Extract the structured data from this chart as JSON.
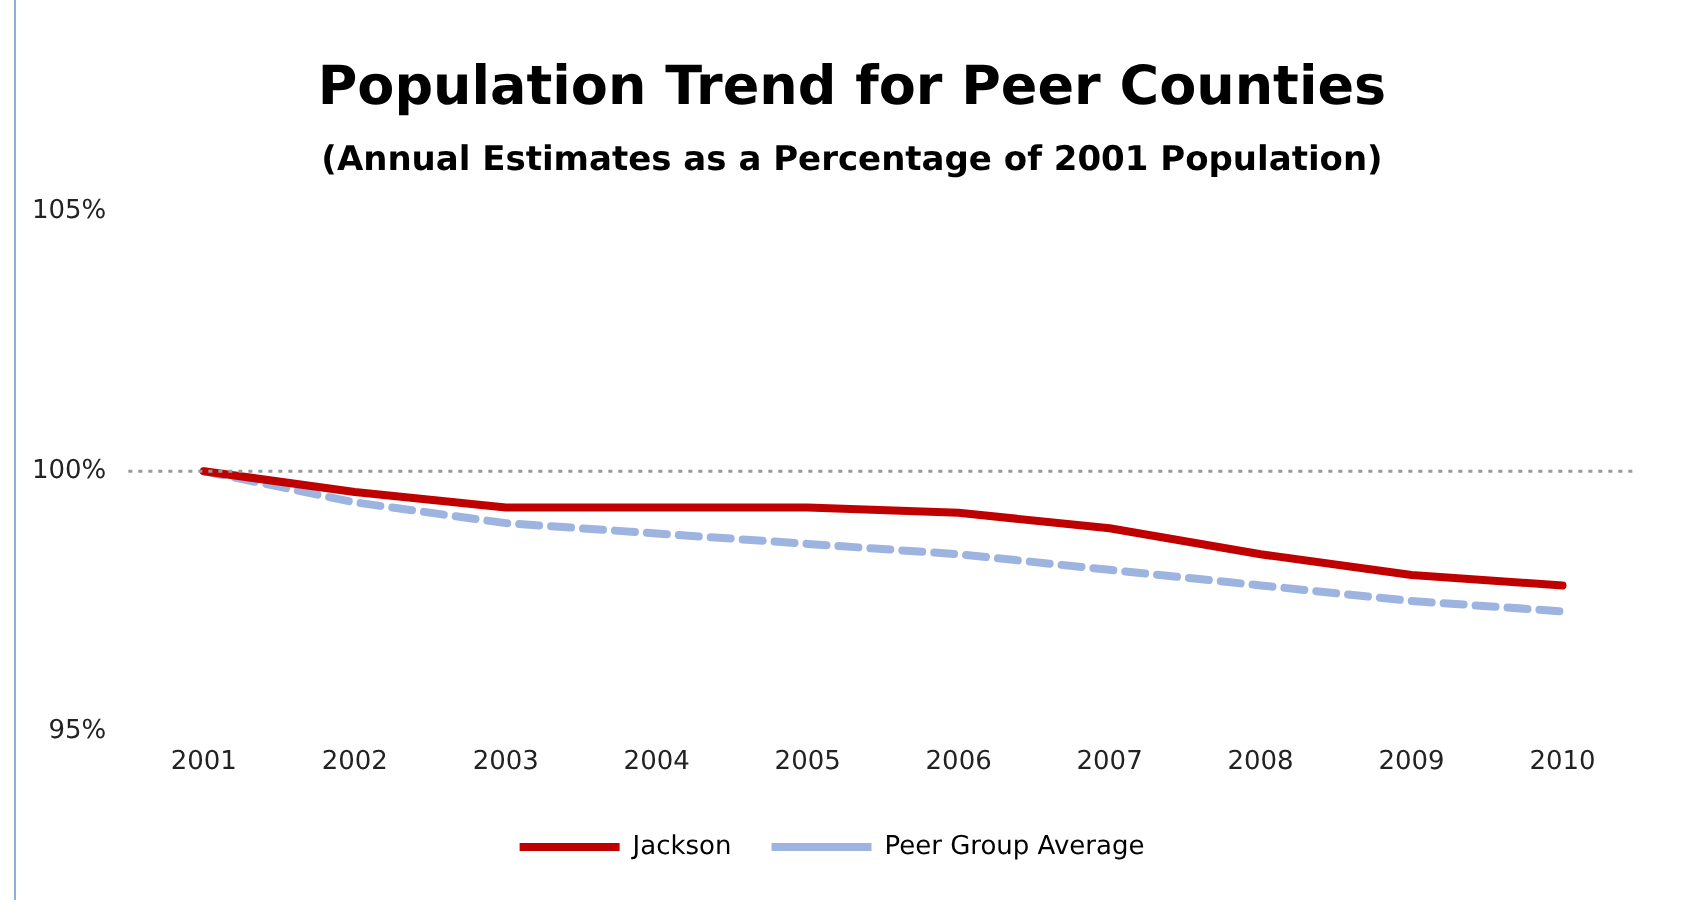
{
  "chart_data": {
    "type": "line",
    "title": "Population Trend for Peer Counties",
    "subtitle": "(Annual Estimates as a Percentage of 2001 Population)",
    "categories": [
      "2001",
      "2002",
      "2003",
      "2004",
      "2005",
      "2006",
      "2007",
      "2008",
      "2009",
      "2010"
    ],
    "series": [
      {
        "name": "Jackson",
        "color": "#c00000",
        "line_style": "solid",
        "values": [
          100,
          99.6,
          99.3,
          99.3,
          99.3,
          99.2,
          98.9,
          98.4,
          98.0,
          97.8
        ]
      },
      {
        "name": "Peer Group Average",
        "color": "#9db3e0",
        "line_style": "dashed",
        "values": [
          100,
          99.4,
          99.0,
          98.8,
          98.6,
          98.4,
          98.1,
          97.8,
          97.5,
          97.3
        ]
      }
    ],
    "ylim": [
      95,
      105
    ],
    "yticks": [
      {
        "value": 95,
        "label": "95%"
      },
      {
        "value": 100,
        "label": "100%"
      },
      {
        "value": 105,
        "label": "105%"
      }
    ],
    "ref_lines": [
      {
        "axis": "y",
        "value": 100,
        "color": "#999999",
        "line_style": "dotted"
      }
    ],
    "grid": false,
    "legend": "bottom",
    "marker": "none"
  }
}
